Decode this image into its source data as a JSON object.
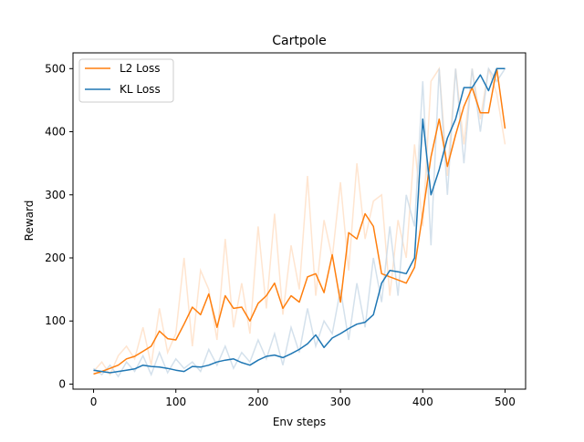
{
  "chart_data": {
    "type": "line",
    "title": "Cartpole",
    "xlabel": "Env steps",
    "ylabel": "Reward",
    "xlim": [
      -25,
      525
    ],
    "ylim": [
      -8,
      525
    ],
    "xticks": [
      0,
      100,
      200,
      300,
      400,
      500
    ],
    "yticks": [
      0,
      100,
      200,
      300,
      400,
      500
    ],
    "grid": false,
    "legend_position": "upper-left",
    "series": [
      {
        "name": "L2 Loss",
        "color": "#ff7f0e",
        "raw_color": "#ffdfc4",
        "x": [
          0,
          10,
          20,
          30,
          40,
          50,
          60,
          70,
          80,
          90,
          100,
          110,
          120,
          130,
          140,
          150,
          160,
          170,
          180,
          190,
          200,
          210,
          220,
          230,
          240,
          250,
          260,
          270,
          280,
          290,
          300,
          310,
          320,
          330,
          340,
          350,
          360,
          370,
          380,
          390,
          400,
          410,
          420,
          430,
          440,
          450,
          460,
          470,
          480,
          490,
          500
        ],
        "values": [
          16,
          20,
          25,
          30,
          40,
          44,
          52,
          60,
          84,
          72,
          70,
          95,
          122,
          110,
          143,
          90,
          140,
          120,
          122,
          100,
          128,
          140,
          160,
          120,
          140,
          130,
          170,
          175,
          145,
          205,
          130,
          240,
          230,
          270,
          250,
          175,
          170,
          165,
          160,
          185,
          270,
          360,
          420,
          345,
          395,
          440,
          470,
          430,
          430,
          500,
          405
        ],
        "raw_values": [
          20,
          35,
          15,
          45,
          60,
          40,
          90,
          30,
          120,
          50,
          80,
          200,
          60,
          180,
          150,
          70,
          230,
          90,
          160,
          80,
          250,
          120,
          270,
          110,
          220,
          150,
          330,
          140,
          260,
          200,
          320,
          180,
          350,
          230,
          290,
          300,
          140,
          260,
          200,
          380,
          250,
          480,
          500,
          330,
          500,
          380,
          500,
          420,
          500,
          460,
          380
        ]
      },
      {
        "name": "KL Loss",
        "color": "#1f77b4",
        "raw_color": "#c9d9e7",
        "x": [
          0,
          10,
          20,
          30,
          40,
          50,
          60,
          70,
          80,
          90,
          100,
          110,
          120,
          130,
          140,
          150,
          160,
          170,
          180,
          190,
          200,
          210,
          220,
          230,
          240,
          250,
          260,
          270,
          280,
          290,
          300,
          310,
          320,
          330,
          340,
          350,
          360,
          370,
          380,
          390,
          400,
          410,
          420,
          430,
          440,
          450,
          460,
          470,
          480,
          490,
          500
        ],
        "values": [
          22,
          20,
          18,
          20,
          22,
          24,
          30,
          28,
          27,
          25,
          22,
          20,
          28,
          27,
          30,
          35,
          38,
          40,
          34,
          30,
          38,
          44,
          46,
          42,
          48,
          55,
          64,
          78,
          58,
          73,
          80,
          88,
          95,
          98,
          110,
          160,
          180,
          178,
          175,
          200,
          420,
          300,
          340,
          390,
          420,
          470,
          470,
          490,
          465,
          500,
          500
        ],
        "raw_values": [
          25,
          15,
          30,
          12,
          35,
          20,
          45,
          15,
          50,
          18,
          40,
          25,
          35,
          20,
          55,
          30,
          60,
          25,
          50,
          35,
          70,
          40,
          80,
          30,
          90,
          50,
          120,
          60,
          100,
          80,
          150,
          70,
          160,
          90,
          200,
          130,
          250,
          140,
          300,
          250,
          480,
          220,
          500,
          300,
          500,
          350,
          500,
          400,
          500,
          480,
          500
        ]
      }
    ]
  }
}
